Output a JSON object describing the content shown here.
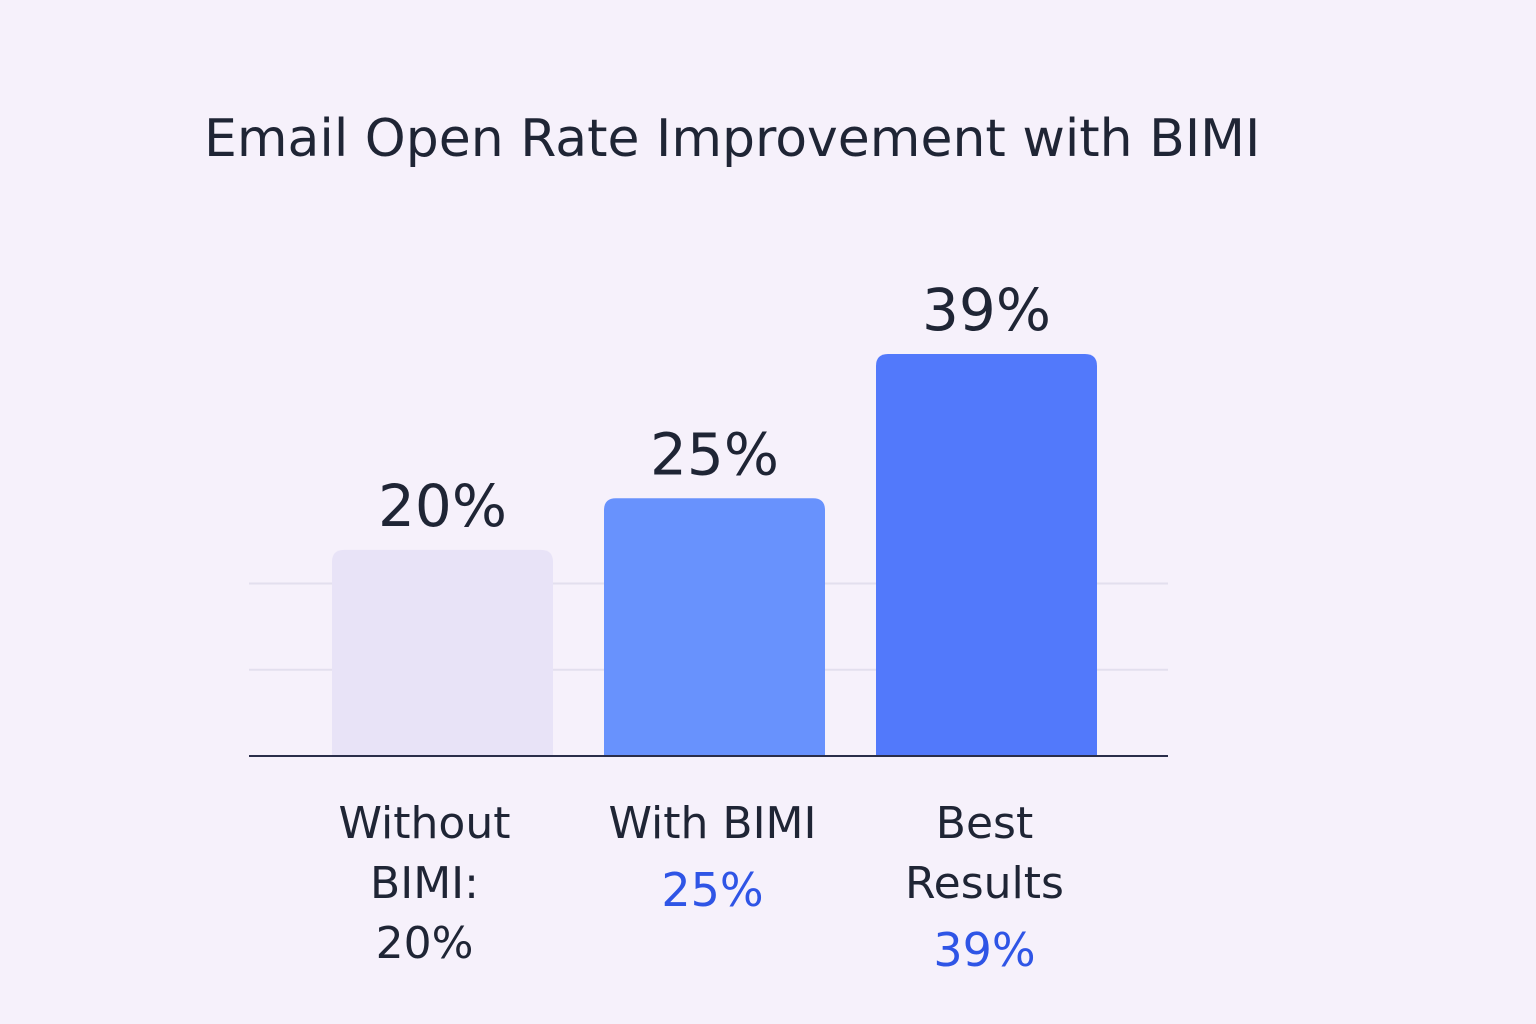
{
  "chart_data": {
    "type": "bar",
    "title": "Email Open Rate Improvement with BIMI",
    "categories": [
      "Without BIMI",
      "With BIMI",
      "Best Results"
    ],
    "values": [
      20,
      25,
      39
    ],
    "value_labels": [
      "20%",
      "25%",
      "39%"
    ],
    "category_label_lines": [
      [
        "Without",
        "BIMI:",
        "20%"
      ],
      [
        "With BIMI",
        "25%"
      ],
      [
        "Best",
        "Results",
        "39%"
      ]
    ],
    "ylim": [
      0,
      60
    ],
    "xlabel": "",
    "ylabel": "",
    "grid": true,
    "bar_colors": [
      "#e8e3f7",
      "#6892fd",
      "#5279fb"
    ],
    "accent_label_color": "#2f55e6",
    "text_color": "#1f2535"
  }
}
